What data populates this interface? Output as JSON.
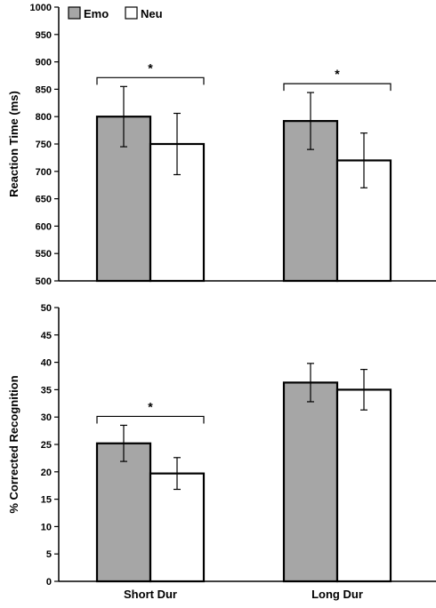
{
  "legend": [
    {
      "label": "Emo",
      "color": "#a6a6a6"
    },
    {
      "label": "Neu",
      "color": "#ffffff"
    }
  ],
  "chart_data": [
    {
      "type": "bar",
      "categories": [
        "Short Dur",
        "Long Dur"
      ],
      "ylabel": "Reaction Time (ms)",
      "ylim": [
        500,
        1000
      ],
      "yticks": [
        500,
        550,
        600,
        650,
        700,
        750,
        800,
        850,
        900,
        950,
        1000
      ],
      "grid": false,
      "legend_position": "top-left",
      "series": [
        {
          "name": "Emo",
          "color": "#a6a6a6",
          "values": [
            800,
            792
          ],
          "error": [
            55,
            52
          ]
        },
        {
          "name": "Neu",
          "color": "#ffffff",
          "values": [
            750,
            720
          ],
          "error": [
            56,
            50
          ]
        }
      ],
      "significance": [
        {
          "category": "Short Dur",
          "label": "*"
        },
        {
          "category": "Long Dur",
          "label": "*"
        }
      ]
    },
    {
      "type": "bar",
      "categories": [
        "Short Dur",
        "Long Dur"
      ],
      "ylabel": "% Corrected Recognition",
      "xlabel_categories_shown": true,
      "ylim": [
        0,
        50
      ],
      "yticks": [
        0,
        5,
        10,
        15,
        20,
        25,
        30,
        35,
        40,
        45,
        50
      ],
      "grid": false,
      "series": [
        {
          "name": "Emo",
          "color": "#a6a6a6",
          "values": [
            25.2,
            36.3
          ],
          "error": [
            3.3,
            3.5
          ]
        },
        {
          "name": "Neu",
          "color": "#ffffff",
          "values": [
            19.7,
            35.0
          ],
          "error": [
            2.9,
            3.7
          ]
        }
      ],
      "significance": [
        {
          "category": "Short Dur",
          "label": "*"
        }
      ]
    }
  ]
}
